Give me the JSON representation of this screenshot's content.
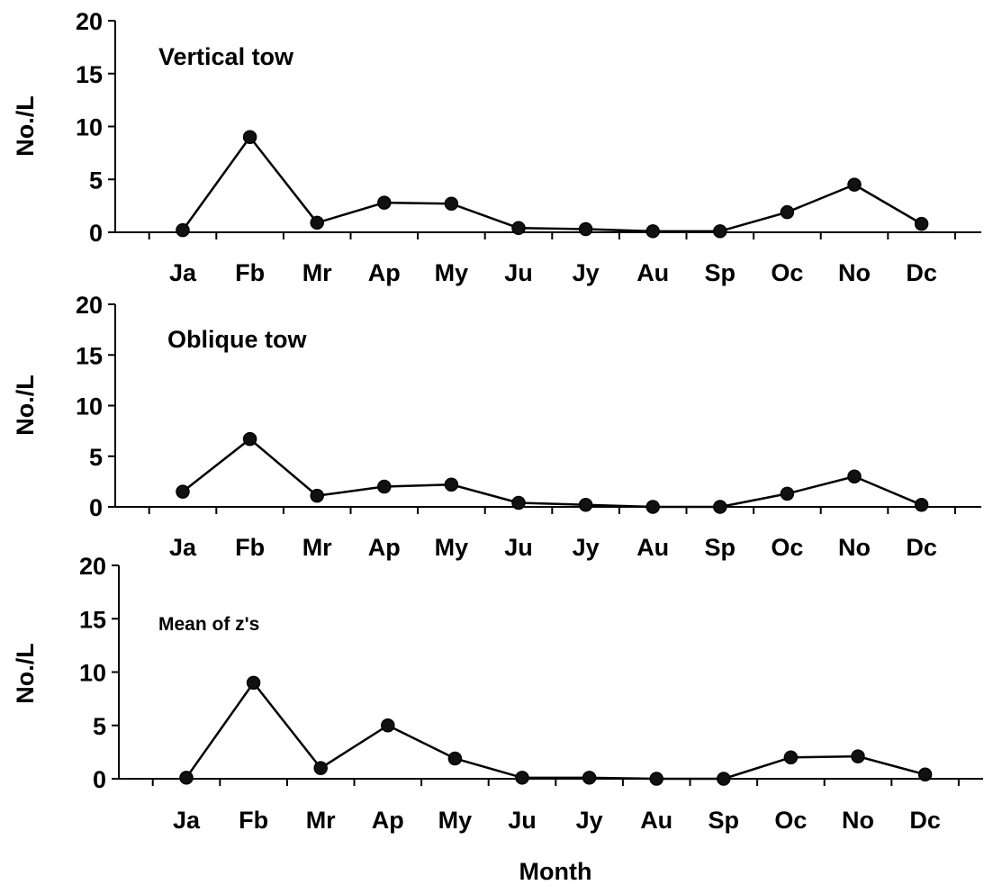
{
  "chart_data": [
    {
      "type": "line",
      "title": "Vertical tow",
      "xlabel": "",
      "ylabel": "No./L",
      "categories": [
        "Ja",
        "Fb",
        "Mr",
        "Ap",
        "My",
        "Ju",
        "Jy",
        "Au",
        "Sp",
        "Oc",
        "No",
        "Dc"
      ],
      "yticks": [
        0,
        5,
        10,
        15,
        20
      ],
      "ylim": [
        0,
        20
      ],
      "grid": false,
      "series": [
        {
          "values": [
            0.2,
            9.0,
            0.9,
            2.8,
            2.7,
            0.4,
            0.3,
            0.1,
            0.1,
            1.9,
            4.5,
            0.8
          ]
        }
      ]
    },
    {
      "type": "line",
      "title": "Oblique tow",
      "xlabel": "",
      "ylabel": "No./L",
      "categories": [
        "Ja",
        "Fb",
        "Mr",
        "Ap",
        "My",
        "Ju",
        "Jy",
        "Au",
        "Sp",
        "Oc",
        "No",
        "Dc"
      ],
      "yticks": [
        0,
        5,
        10,
        15,
        20
      ],
      "ylim": [
        0,
        20
      ],
      "grid": false,
      "series": [
        {
          "values": [
            1.5,
            6.7,
            1.1,
            2.0,
            2.2,
            0.4,
            0.2,
            0.0,
            0.0,
            1.3,
            3.0,
            0.2
          ]
        }
      ]
    },
    {
      "type": "line",
      "title": "Mean of z's",
      "xlabel": "Month",
      "ylabel": "No./L",
      "categories": [
        "Ja",
        "Fb",
        "Mr",
        "Ap",
        "My",
        "Ju",
        "Jy",
        "Au",
        "Sp",
        "Oc",
        "No",
        "Dc"
      ],
      "yticks": [
        0,
        5,
        10,
        15,
        20
      ],
      "ylim": [
        0,
        20
      ],
      "grid": false,
      "series": [
        {
          "values": [
            0.1,
            9.0,
            1.0,
            5.0,
            1.9,
            0.1,
            0.1,
            0.0,
            0.0,
            2.0,
            2.1,
            0.4
          ]
        }
      ]
    }
  ]
}
